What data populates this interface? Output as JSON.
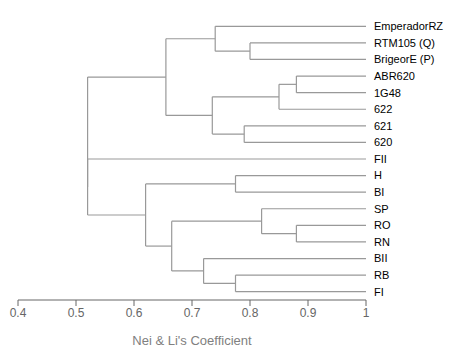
{
  "chart_data": {
    "type": "dendrogram",
    "xlabel": "Nei & Li's Coefficient",
    "categories": [
      "EmperadorRZ",
      "RTM105 (Q)",
      "BrigeorE (P)",
      "ABR620",
      "1G48",
      "622",
      "621",
      "620",
      "FII",
      "H",
      "BI",
      "SP",
      "RO",
      "RN",
      "BII",
      "RB",
      "FI"
    ],
    "color": "#999999",
    "xlim": [
      0.4,
      1.0
    ],
    "xticks": [
      0.4,
      0.5,
      0.6,
      0.7,
      0.8,
      0.9,
      1
    ],
    "grid": false,
    "tree": {
      "x": 0.52,
      "children": [
        {
          "x": 0.655,
          "children": [
            {
              "x": 0.74,
              "children": [
                "EmperadorRZ",
                {
                  "x": 0.8,
                  "children": [
                    "RTM105 (Q)",
                    "BrigeorE (P)"
                  ]
                }
              ]
            },
            {
              "x": 0.735,
              "children": [
                {
                  "x": 0.85,
                  "children": [
                    {
                      "x": 0.88,
                      "children": [
                        "ABR620",
                        "1G48"
                      ]
                    },
                    "622"
                  ]
                },
                {
                  "x": 0.79,
                  "children": [
                    "621",
                    "620"
                  ]
                }
              ]
            }
          ]
        },
        {
          "x": 0.52,
          "children": [
            "FII",
            {
              "x": 0.62,
              "children": [
                {
                  "x": 0.775,
                  "children": [
                    "H",
                    "BI"
                  ]
                },
                {
                  "x": 0.665,
                  "children": [
                    {
                      "x": 0.82,
                      "children": [
                        "SP",
                        {
                          "x": 0.88,
                          "children": [
                            "RO",
                            "RN"
                          ]
                        }
                      ]
                    },
                    {
                      "x": 0.72,
                      "children": [
                        "BII",
                        {
                          "x": 0.775,
                          "children": [
                            "RB",
                            "FI"
                          ]
                        }
                      ]
                    }
                  ]
                }
              ]
            }
          ]
        }
      ]
    }
  }
}
